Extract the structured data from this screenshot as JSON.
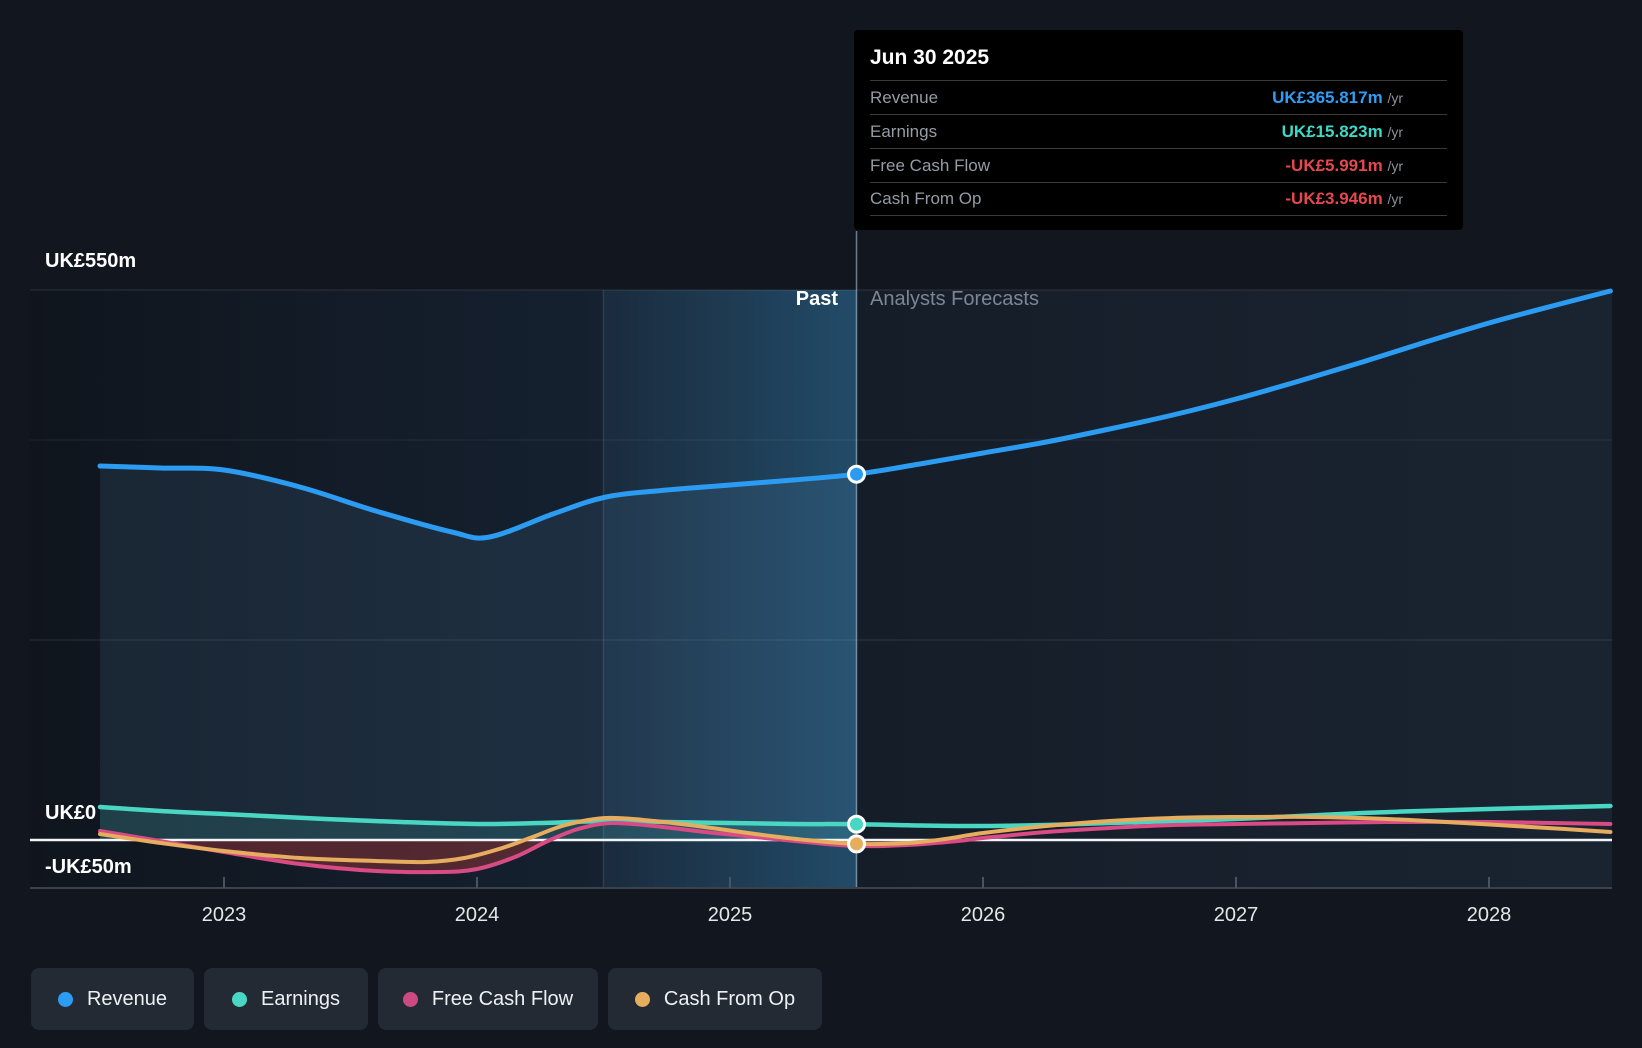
{
  "tooltip": {
    "date": "Jun 30 2025",
    "rows": [
      {
        "label": "Revenue",
        "value": "UK£365.817m",
        "unit": "/yr",
        "color": "#2f9ef4"
      },
      {
        "label": "Earnings",
        "value": "UK£15.823m",
        "unit": "/yr",
        "color": "#3ed8c6"
      },
      {
        "label": "Free Cash Flow",
        "value": "-UK£5.991m",
        "unit": "/yr",
        "color": "#e5484d"
      },
      {
        "label": "Cash From Op",
        "value": "-UK£3.946m",
        "unit": "/yr",
        "color": "#e5484d"
      }
    ]
  },
  "y_axis": {
    "top": "UK£550m",
    "zero": "UK£0",
    "bottom": "-UK£50m"
  },
  "x_axis": {
    "years": [
      "2023",
      "2024",
      "2025",
      "2026",
      "2027",
      "2028"
    ]
  },
  "annotations": {
    "past": "Past",
    "forecast": "Analysts Forecasts"
  },
  "legend": [
    {
      "label": "Revenue",
      "color": "#2b9cf2"
    },
    {
      "label": "Earnings",
      "color": "#49d7c4"
    },
    {
      "label": "Free Cash Flow",
      "color": "#cc4a80"
    },
    {
      "label": "Cash From Op",
      "color": "#e7ad5f"
    }
  ],
  "chart_data": {
    "type": "line",
    "title": "Revenue, Earnings and Cash Flow history and forecast (UK£ millions)",
    "x_range": [
      2022.51,
      2028.49
    ],
    "today": 2025.5,
    "ylim": [
      -50,
      550
    ],
    "gridlines_m": [
      550,
      400,
      200
    ],
    "y_zero": 0,
    "y_bottom": -50,
    "legend_position": "bottom",
    "series": [
      {
        "name": "Revenue",
        "color": "#2b9cf2",
        "width": 5,
        "marker": true,
        "fill": "rgba(93,148,190,0.13)",
        "points": [
          [
            2022.51,
            374
          ],
          [
            2022.75,
            372
          ],
          [
            2023.0,
            370
          ],
          [
            2023.3,
            353
          ],
          [
            2023.6,
            329
          ],
          [
            2023.9,
            308
          ],
          [
            2024.05,
            303
          ],
          [
            2024.3,
            326
          ],
          [
            2024.51,
            343
          ],
          [
            2024.75,
            350
          ],
          [
            2025.0,
            355
          ],
          [
            2025.25,
            360
          ],
          [
            2025.5,
            365.817
          ],
          [
            2025.75,
            376
          ],
          [
            2026.0,
            387
          ],
          [
            2026.25,
            398
          ],
          [
            2026.5,
            411
          ],
          [
            2026.75,
            425
          ],
          [
            2027.0,
            441
          ],
          [
            2027.25,
            459
          ],
          [
            2027.5,
            478
          ],
          [
            2027.75,
            498
          ],
          [
            2028.0,
            517
          ],
          [
            2028.25,
            534
          ],
          [
            2028.48,
            549
          ]
        ]
      },
      {
        "name": "Earnings",
        "color": "#49d7c4",
        "width": 4.5,
        "marker": true,
        "fill": "rgba(73,215,196,0.14)",
        "points": [
          [
            2022.51,
            33
          ],
          [
            2022.75,
            29
          ],
          [
            2023.0,
            26
          ],
          [
            2023.4,
            21
          ],
          [
            2023.7,
            18
          ],
          [
            2024.0,
            16
          ],
          [
            2024.25,
            17
          ],
          [
            2024.51,
            19
          ],
          [
            2024.75,
            18
          ],
          [
            2025.0,
            17
          ],
          [
            2025.25,
            16
          ],
          [
            2025.5,
            15.823
          ],
          [
            2025.75,
            14.5
          ],
          [
            2026.0,
            14
          ],
          [
            2026.25,
            15
          ],
          [
            2026.5,
            17
          ],
          [
            2027.0,
            21
          ],
          [
            2027.5,
            27
          ],
          [
            2028.0,
            31
          ],
          [
            2028.48,
            34
          ]
        ]
      },
      {
        "name": "Free Cash Flow",
        "color": "#d84b85",
        "width": 4,
        "marker": false,
        "neg_fill": "rgba(146,52,56,0.5)",
        "points": [
          [
            2022.51,
            9
          ],
          [
            2022.7,
            1
          ],
          [
            2023.0,
            -12
          ],
          [
            2023.3,
            -24
          ],
          [
            2023.6,
            -31
          ],
          [
            2023.85,
            -32
          ],
          [
            2024.0,
            -29
          ],
          [
            2024.15,
            -17
          ],
          [
            2024.28,
            -1
          ],
          [
            2024.4,
            11
          ],
          [
            2024.53,
            17
          ],
          [
            2024.7,
            14
          ],
          [
            2024.9,
            8
          ],
          [
            2025.1,
            3
          ],
          [
            2025.3,
            -2
          ],
          [
            2025.5,
            -5.991
          ],
          [
            2025.7,
            -5
          ],
          [
            2025.9,
            -1
          ],
          [
            2026.0,
            2
          ],
          [
            2026.25,
            8
          ],
          [
            2026.5,
            12
          ],
          [
            2026.75,
            15
          ],
          [
            2027.0,
            16
          ],
          [
            2027.3,
            17
          ],
          [
            2027.6,
            18
          ],
          [
            2028.0,
            18
          ],
          [
            2028.25,
            17
          ],
          [
            2028.48,
            16
          ]
        ]
      },
      {
        "name": "Cash From Op",
        "color": "#e7ad5f",
        "width": 4,
        "marker": true,
        "points": [
          [
            2022.51,
            6
          ],
          [
            2022.75,
            -3
          ],
          [
            2023.0,
            -11
          ],
          [
            2023.3,
            -18
          ],
          [
            2023.6,
            -21
          ],
          [
            2023.8,
            -22
          ],
          [
            2023.95,
            -18
          ],
          [
            2024.1,
            -8
          ],
          [
            2024.22,
            3
          ],
          [
            2024.35,
            15
          ],
          [
            2024.51,
            22
          ],
          [
            2024.7,
            19
          ],
          [
            2024.9,
            13
          ],
          [
            2025.1,
            6
          ],
          [
            2025.3,
            0
          ],
          [
            2025.5,
            -3.946
          ],
          [
            2025.7,
            -3
          ],
          [
            2025.85,
            1
          ],
          [
            2026.0,
            7
          ],
          [
            2026.25,
            14
          ],
          [
            2026.5,
            19
          ],
          [
            2026.75,
            22
          ],
          [
            2027.0,
            23
          ],
          [
            2027.3,
            23
          ],
          [
            2027.6,
            21
          ],
          [
            2027.9,
            17
          ],
          [
            2028.1,
            14
          ],
          [
            2028.3,
            11
          ],
          [
            2028.48,
            8
          ]
        ]
      }
    ]
  }
}
